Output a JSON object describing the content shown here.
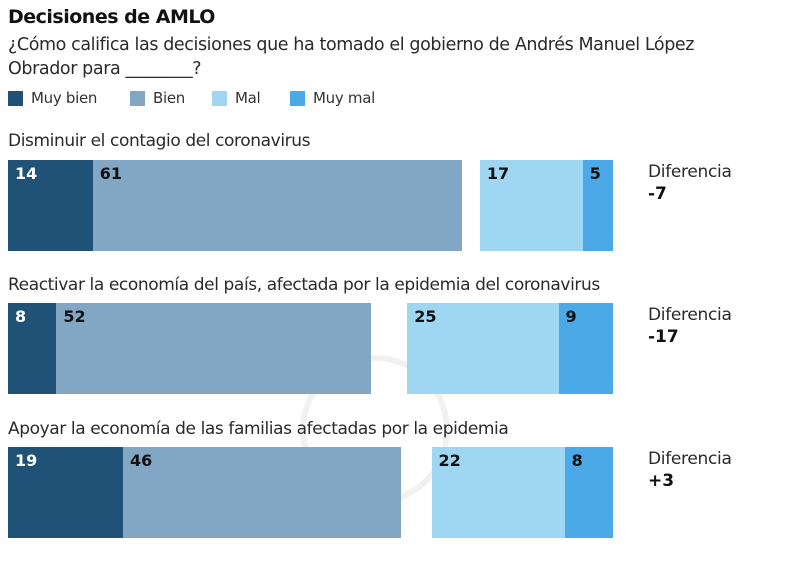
{
  "header": {
    "title": "Decisiones de AMLO",
    "subtitle": "¿Cómo califica las decisiones que ha tomado el gobierno de Andrés Manuel López Obrador para ________?"
  },
  "colors": {
    "muy_bien": "#1f5276",
    "bien": "#82a7c5",
    "mal": "#9fd6f2",
    "muy_mal": "#4aa9e6"
  },
  "chart_data": {
    "type": "bar",
    "orientation": "horizontal",
    "stacked": true,
    "diverging": true,
    "title": "Decisiones de AMLO",
    "subtitle": "¿Cómo califica las decisiones que ha tomado el gobierno de Andrés Manuel López Obrador para ________?",
    "legend": [
      "Muy bien",
      "Bien",
      "Mal",
      "Muy mal"
    ],
    "legend_position": "top-left",
    "categories": [
      "Disminuir el contagio del coronavirus",
      "Reactivar la economía del país, afectada por la epidemia del coronavirus",
      "Apoyar la economía de las familias afectadas por la epidemia"
    ],
    "series": [
      {
        "name": "Muy bien",
        "values": [
          14,
          8,
          19
        ]
      },
      {
        "name": "Bien",
        "values": [
          61,
          52,
          46
        ]
      },
      {
        "name": "Mal",
        "values": [
          17,
          25,
          22
        ]
      },
      {
        "name": "Muy mal",
        "values": [
          5,
          9,
          8
        ]
      }
    ],
    "difference_label": "Diferencia",
    "differences": [
      "-7",
      "-17",
      "+3"
    ],
    "grid": false
  }
}
